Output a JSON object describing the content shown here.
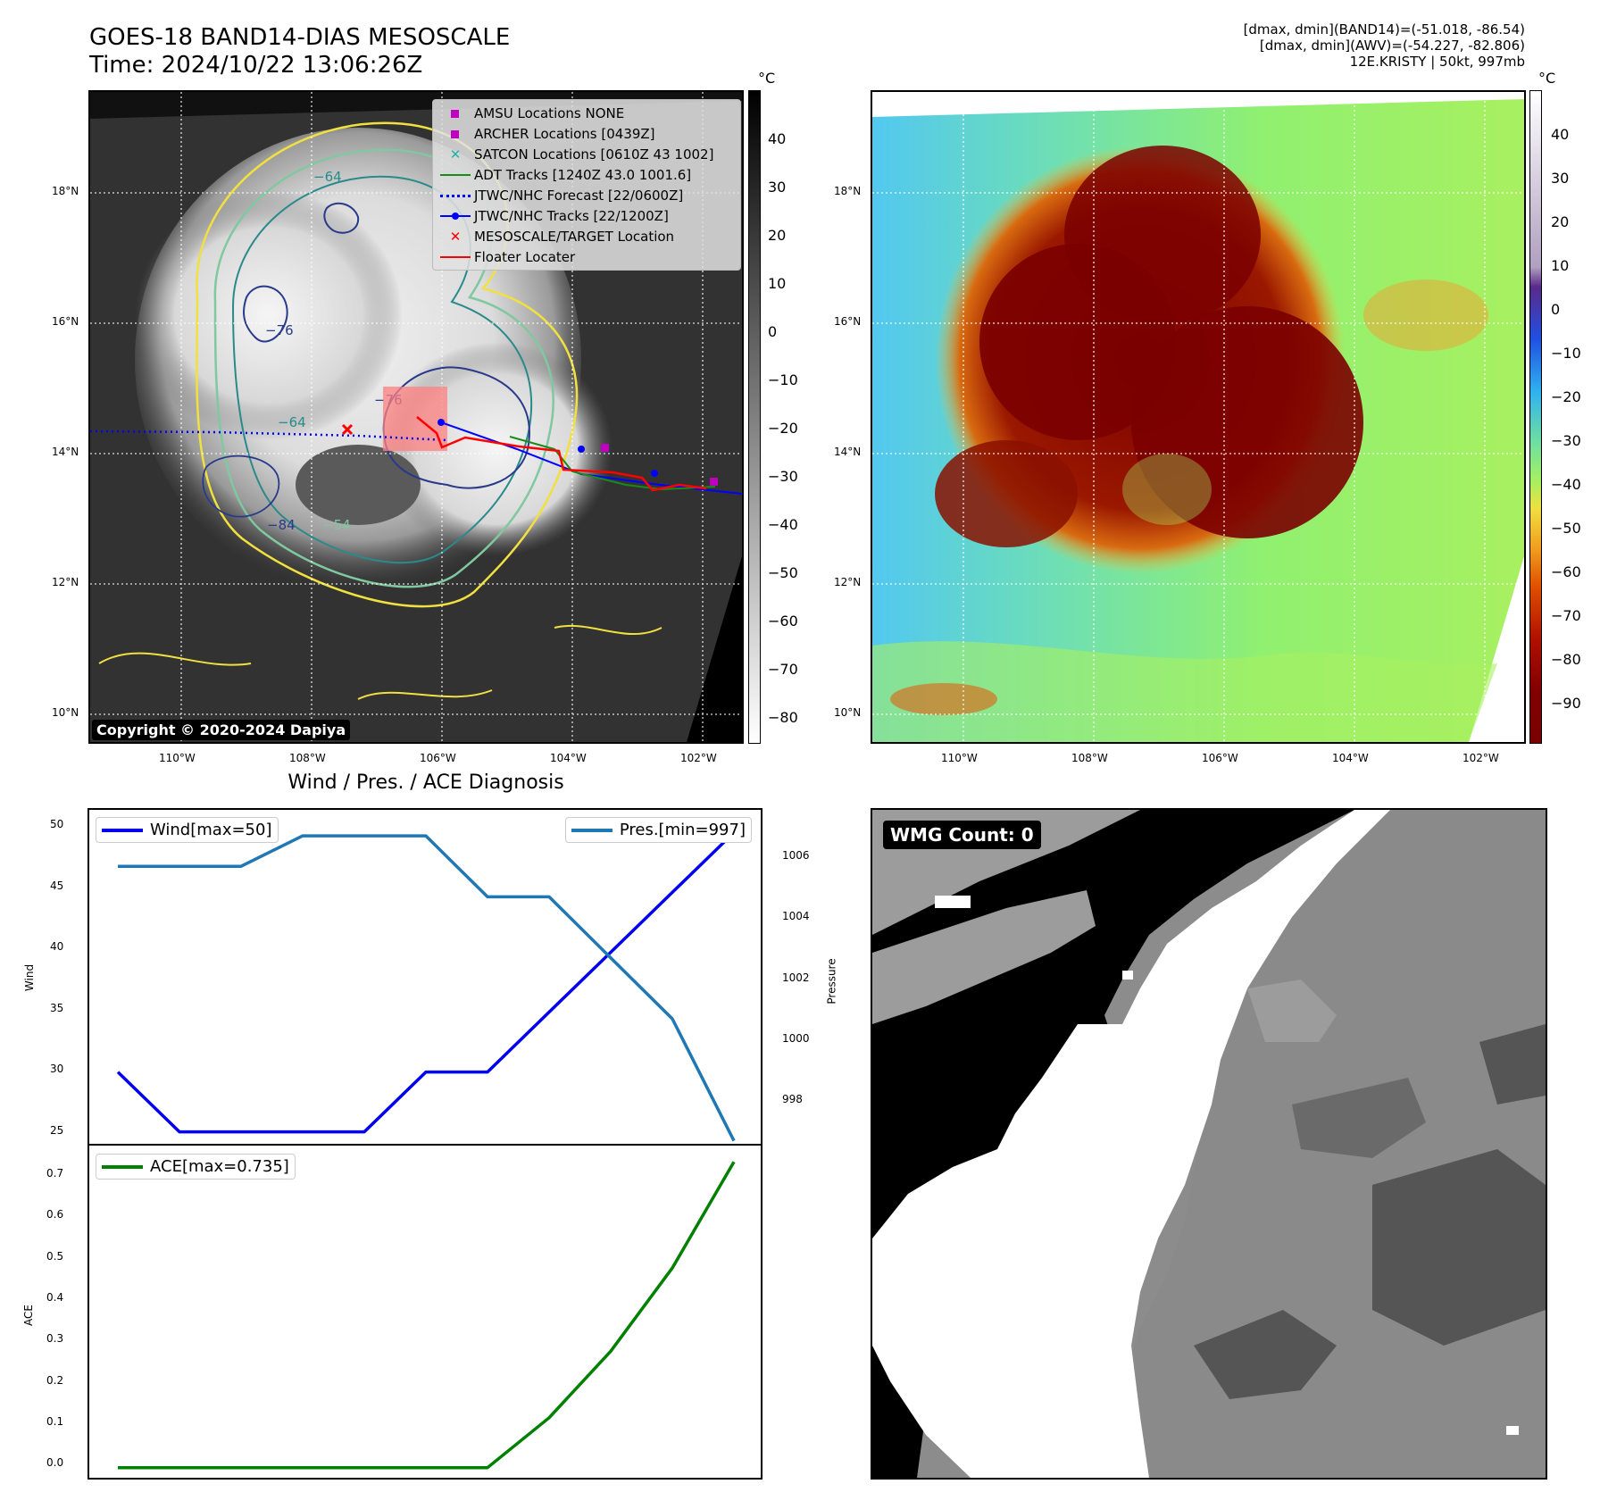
{
  "header": {
    "title": "GOES-18 BAND14-DIAS MESOSCALE",
    "time": "Time: 2024/10/22 13:06:26Z",
    "meta_line1": "[dmax, dmin](BAND14)=(-51.018, -86.54)",
    "meta_line2": "[dmax, dmin](AWV)=(-54.227, -82.806)",
    "meta_line3": "12E.KRISTY | 50kt, 997mb"
  },
  "map_axes": {
    "lat_labels": [
      "18°N",
      "16°N",
      "14°N",
      "12°N",
      "10°N"
    ],
    "lon_labels": [
      "110°W",
      "108°W",
      "106°W",
      "104°W",
      "102°W"
    ]
  },
  "ir_panel": {
    "unit": "°C",
    "colorbar_ticks": [
      "40",
      "30",
      "20",
      "10",
      "0",
      "−10",
      "−20",
      "−30",
      "−40",
      "−50",
      "−60",
      "−70",
      "−80"
    ],
    "copyright": "Copyright © 2020-2024 Dapiya",
    "contour_labels": [
      "−76",
      "−64",
      "−76",
      "−64",
      "−84",
      "−54"
    ],
    "legend": [
      {
        "label": "AMSU Locations NONE",
        "symbol": "square",
        "color": "#c000c0"
      },
      {
        "label": "ARCHER Locations [0439Z]",
        "symbol": "square",
        "color": "#c000c0"
      },
      {
        "label": "SATCON Locations [0610Z 43 1002]",
        "symbol": "x",
        "color": "#20b2aa"
      },
      {
        "label": "ADT Tracks [1240Z 43.0 1001.6]",
        "symbol": "line",
        "color": "#1a8a1a"
      },
      {
        "label": "JTWC/NHC Forecast [22/0600Z]",
        "symbol": "dotted",
        "color": "#0000ff"
      },
      {
        "label": "JTWC/NHC Tracks [22/1200Z]",
        "symbol": "line-dot",
        "color": "#0000ff"
      },
      {
        "label": "MESOSCALE/TARGET Location",
        "symbol": "x",
        "color": "#ff0000"
      },
      {
        "label": "Floater Locater",
        "symbol": "line",
        "color": "#ff0000"
      }
    ]
  },
  "awv_panel": {
    "unit": "°C",
    "colorbar_ticks": [
      "40",
      "30",
      "20",
      "10",
      "0",
      "−10",
      "−20",
      "−30",
      "−40",
      "−50",
      "−60",
      "−70",
      "−80",
      "−90"
    ]
  },
  "diag_panel": {
    "title": "Wind / Pres. / ACE Diagnosis",
    "wind_ylabel": "Wind",
    "pres_ylabel": "Pressure",
    "ace_ylabel": "ACE",
    "wind_ticks": [
      "50",
      "45",
      "40",
      "35",
      "30",
      "25"
    ],
    "pres_ticks": [
      "1006",
      "1004",
      "1002",
      "1000",
      "998"
    ],
    "ace_ticks": [
      "0.7",
      "0.6",
      "0.5",
      "0.4",
      "0.3",
      "0.2",
      "0.1",
      "0.0"
    ]
  },
  "wmg_panel": {
    "label": "WMG Count: 0"
  },
  "chart_data": [
    {
      "type": "line",
      "title": "Wind / Pres. / ACE Diagnosis",
      "x": [
        0,
        1,
        2,
        3,
        4,
        5,
        6,
        7,
        8,
        9,
        10
      ],
      "series": [
        {
          "name": "Wind[max=50]",
          "axis": "left",
          "color": "#0000ee",
          "values": [
            30,
            25,
            25,
            25,
            25,
            30,
            30,
            35,
            40,
            45,
            50
          ]
        }
      ],
      "ylim": [
        24,
        51
      ],
      "ylabel": "Wind"
    },
    {
      "type": "line",
      "x": [
        0,
        1,
        2,
        3,
        4,
        5,
        6,
        7,
        8,
        9,
        10
      ],
      "series": [
        {
          "name": "Pres.[min=997]",
          "axis": "right",
          "color": "#1f77b4",
          "values": [
            1006,
            1006,
            1006,
            1007,
            1007,
            1007,
            1005,
            1005,
            1003,
            1001,
            997
          ]
        }
      ],
      "ylim": [
        996.9,
        1007.5
      ],
      "ylabel": "Pressure"
    },
    {
      "type": "line",
      "x": [
        0,
        1,
        2,
        3,
        4,
        5,
        6,
        7,
        8,
        9,
        10
      ],
      "series": [
        {
          "name": "ACE[max=0.735]",
          "color": "#008000",
          "values": [
            0,
            0,
            0,
            0,
            0,
            0,
            0,
            0.12,
            0.28,
            0.48,
            0.735
          ]
        }
      ],
      "ylim": [
        -0.02,
        0.77
      ],
      "ylabel": "ACE"
    }
  ]
}
